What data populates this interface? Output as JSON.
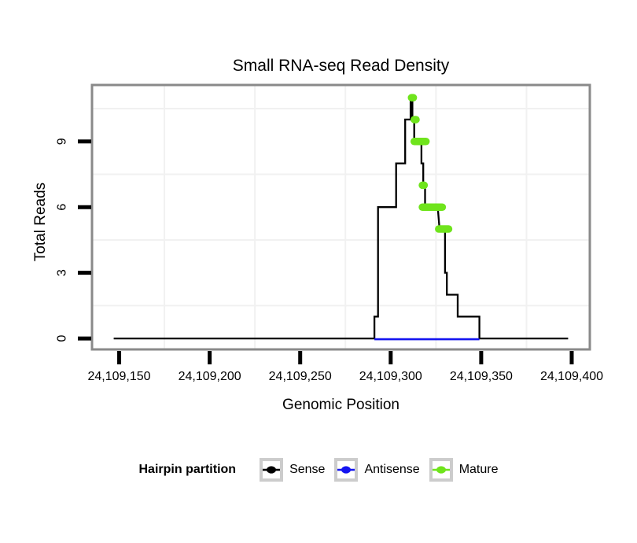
{
  "chart_data": {
    "type": "line",
    "title": "Small RNA-seq Read Density",
    "xlabel": "Genomic Position",
    "ylabel": "Total Reads",
    "xlim": [
      24109135,
      24109410
    ],
    "ylim": [
      -0.5,
      11.58
    ],
    "x_ticks": [
      {
        "value": 24109150,
        "label": "24,109,150"
      },
      {
        "value": 24109200,
        "label": "24,109,200"
      },
      {
        "value": 24109250,
        "label": "24,109,250"
      },
      {
        "value": 24109300,
        "label": "24,109,300"
      },
      {
        "value": 24109350,
        "label": "24,109,350"
      },
      {
        "value": 24109400,
        "label": "24,109,400"
      }
    ],
    "y_ticks": [
      {
        "value": 0,
        "label": "0"
      },
      {
        "value": 3,
        "label": "3"
      },
      {
        "value": 6,
        "label": "6"
      },
      {
        "value": 9,
        "label": "9"
      }
    ],
    "grid": {
      "x_minor": [
        24109175,
        24109225,
        24109275,
        24109325,
        24109375
      ],
      "y_minor": [
        1.5,
        4.5,
        7.5,
        10.5
      ]
    },
    "legend": {
      "title": "Hairpin partition",
      "position": "bottom",
      "items": [
        {
          "label": "Sense",
          "color": "#000000"
        },
        {
          "label": "Antisense",
          "color": "#1414f0"
        },
        {
          "label": "Mature",
          "color": "#6fe41c"
        }
      ]
    },
    "series": [
      {
        "name": "Sense",
        "color": "#000000",
        "style": "step",
        "points": [
          [
            24109147,
            0
          ],
          [
            24109291,
            0
          ],
          [
            24109291,
            1
          ],
          [
            24109293,
            1
          ],
          [
            24109293,
            6
          ],
          [
            24109303,
            6
          ],
          [
            24109303,
            8
          ],
          [
            24109308,
            8
          ],
          [
            24109308,
            10
          ],
          [
            24109311,
            10
          ],
          [
            24109311,
            11
          ],
          [
            24109312,
            11
          ],
          [
            24109312,
            10
          ],
          [
            24109313,
            10
          ],
          [
            24109313,
            9
          ],
          [
            24109317,
            9
          ],
          [
            24109317,
            8
          ],
          [
            24109318,
            8
          ],
          [
            24109318,
            7
          ],
          [
            24109319,
            7
          ],
          [
            24109319,
            6
          ],
          [
            24109326,
            6
          ],
          [
            24109327,
            5
          ],
          [
            24109330,
            5
          ],
          [
            24109330,
            3
          ],
          [
            24109331,
            3
          ],
          [
            24109331,
            2
          ],
          [
            24109337,
            2
          ],
          [
            24109337,
            1
          ],
          [
            24109349,
            1
          ],
          [
            24109349,
            0
          ],
          [
            24109398,
            0
          ]
        ]
      },
      {
        "name": "Antisense",
        "color": "#1414f0",
        "style": "line",
        "points": [
          [
            24109291,
            0
          ],
          [
            24109349,
            0
          ]
        ]
      },
      {
        "name": "Mature",
        "color": "#6fe41c",
        "style": "points",
        "segments": [
          {
            "start": 24109311.5,
            "end": 24109312.5,
            "reads": 11
          },
          {
            "start": 24109313,
            "end": 24109314,
            "reads": 10
          },
          {
            "start": 24109313,
            "end": 24109319.5,
            "reads": 9
          },
          {
            "start": 24109317.5,
            "end": 24109318.5,
            "reads": 7
          },
          {
            "start": 24109317.5,
            "end": 24109328.5,
            "reads": 6
          },
          {
            "start": 24109326.5,
            "end": 24109332,
            "reads": 5
          }
        ]
      }
    ]
  }
}
